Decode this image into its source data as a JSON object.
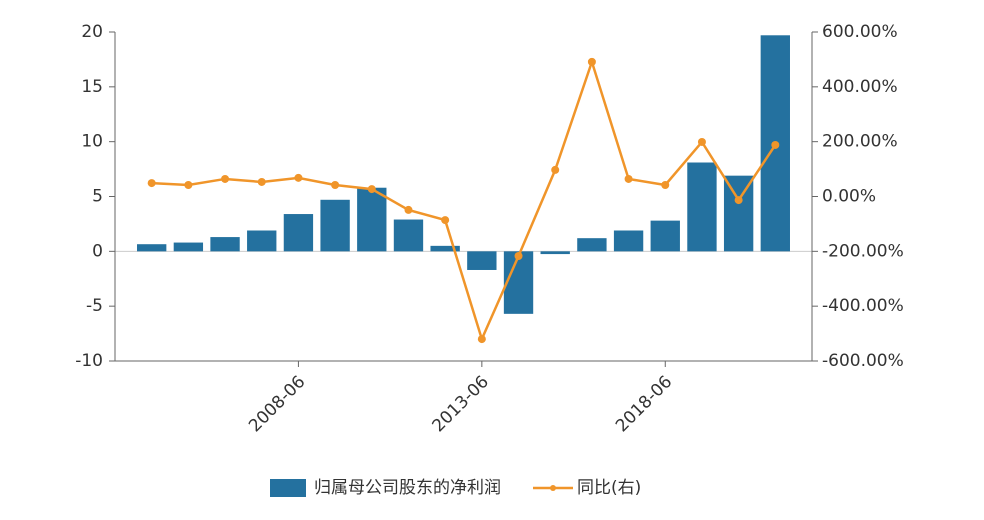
{
  "chart_data": {
    "type": "bar-line",
    "categories": [
      null,
      null,
      null,
      null,
      "2008-06",
      null,
      null,
      null,
      null,
      "2013-06",
      null,
      null,
      null,
      null,
      "2018-06",
      null,
      null,
      null
    ],
    "series": [
      {
        "name": "归属母公司股东的净利润",
        "type": "bar",
        "color": "#24719f",
        "values": [
          0.65,
          0.8,
          1.3,
          1.9,
          3.4,
          4.7,
          5.8,
          2.9,
          0.5,
          -1.7,
          -5.7,
          -0.25,
          1.2,
          1.9,
          2.8,
          8.1,
          6.9,
          19.7
        ]
      },
      {
        "name": "同比(右)",
        "type": "line",
        "axis": "y2",
        "color": "#f0952a",
        "values": [
          49,
          42,
          64,
          53,
          68,
          42,
          27,
          -49,
          -86,
          -520,
          -217,
          97,
          491,
          64,
          42,
          199,
          -13,
          188
        ]
      }
    ],
    "ylim": [
      -10,
      20
    ],
    "yticks": [
      -10,
      -5,
      0,
      5,
      10,
      15,
      20
    ],
    "y2lim": [
      -600,
      600
    ],
    "y2ticks": [
      {
        "value": -600,
        "label": "-600.00%"
      },
      {
        "value": -400,
        "label": "-400.00%"
      },
      {
        "value": -200,
        "label": "-200.00%"
      },
      {
        "value": 0,
        "label": "0.00%"
      },
      {
        "value": 200,
        "label": "200.00%"
      },
      {
        "value": 400,
        "label": "400.00%"
      },
      {
        "value": 600,
        "label": "600.00%"
      }
    ],
    "legend": "bottom"
  }
}
